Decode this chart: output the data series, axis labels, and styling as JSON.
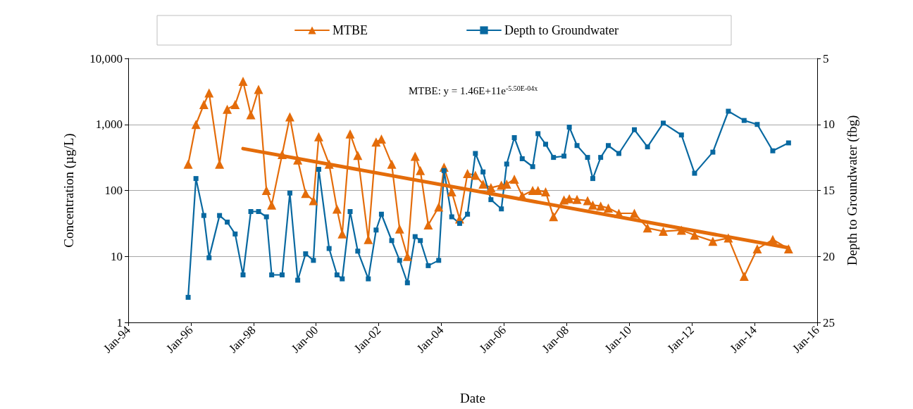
{
  "chart_data": {
    "type": "line",
    "xlabel": "Date",
    "ylabel": "Concentration (µg/L)",
    "y2label": "Depth to Groundwater (fbg)",
    "annotations": [
      "MTBE: y = 1.46E+11e$^{-5.50E-04x}$"
    ],
    "x": [
      "1995-12",
      "1996-03",
      "1996-06",
      "1996-08",
      "1996-12",
      "1997-03",
      "1997-06",
      "1997-09",
      "1997-12",
      "1998-03",
      "1998-06",
      "1998-08",
      "1998-12",
      "1999-03",
      "1999-06",
      "1999-09",
      "1999-12",
      "2000-02",
      "2000-06",
      "2000-09",
      "2000-11",
      "2001-02",
      "2001-05",
      "2001-09",
      "2001-12",
      "2002-02",
      "2002-06",
      "2002-09",
      "2002-12",
      "2003-03",
      "2003-05",
      "2003-08",
      "2003-12",
      "2004-02",
      "2004-05",
      "2004-08",
      "2004-11",
      "2005-02",
      "2005-05",
      "2005-08",
      "2005-12",
      "2006-02",
      "2006-05",
      "2006-08",
      "2006-12",
      "2007-02",
      "2007-05",
      "2007-08",
      "2007-12",
      "2008-02",
      "2008-05",
      "2008-09",
      "2008-11",
      "2009-02",
      "2009-05",
      "2009-09",
      "2010-03",
      "2010-08",
      "2011-02",
      "2011-09",
      "2012-02",
      "2012-09",
      "2013-03",
      "2013-09",
      "2014-02",
      "2014-08",
      "2015-02"
    ],
    "series": [
      {
        "name": "MTBE",
        "color": "#e46c0a",
        "marker": "triangle",
        "values": [
          250,
          1000,
          2000,
          3000,
          250,
          1700,
          2000,
          4500,
          1400,
          3400,
          100,
          60,
          350,
          1300,
          290,
          90,
          70,
          650,
          250,
          52,
          22,
          720,
          340,
          18,
          540,
          600,
          250,
          26,
          10,
          330,
          200,
          30,
          56,
          225,
          95,
          37,
          180,
          170,
          125,
          110,
          120,
          125,
          148,
          83,
          100,
          100,
          95,
          40,
          72,
          75,
          73,
          70,
          60,
          58,
          54,
          45,
          45,
          27,
          24,
          25,
          21,
          17,
          19,
          5,
          13,
          18,
          13
        ]
      },
      {
        "name": "Depth to Groundwater",
        "color": "#0868a0",
        "marker": "square",
        "axis": "y2",
        "values": [
          23.1,
          14.1,
          16.9,
          20.1,
          16.9,
          17.4,
          18.3,
          21.4,
          16.6,
          16.6,
          17.0,
          21.4,
          21.4,
          15.2,
          21.8,
          19.8,
          20.3,
          13.4,
          19.4,
          21.4,
          21.7,
          16.6,
          19.6,
          21.7,
          18.0,
          16.8,
          18.8,
          20.3,
          22.0,
          18.5,
          18.8,
          20.7,
          20.3,
          13.5,
          17.0,
          17.5,
          16.8,
          12.2,
          13.6,
          15.7,
          16.4,
          13.0,
          11.0,
          12.6,
          13.2,
          10.7,
          11.5,
          12.5,
          12.4,
          10.2,
          11.6,
          12.5,
          14.1,
          12.5,
          11.6,
          12.2,
          10.4,
          11.7,
          9.9,
          10.8,
          13.7,
          12.1,
          9.0,
          9.7,
          10.0,
          12.0,
          11.4
        ]
      },
      {
        "type": "line",
        "color": "#e46c0a",
        "marker": "none",
        "x": [
          "1997-09",
          "2015-02"
        ],
        "values": [
          430,
          13.5
        ]
      }
    ],
    "log": "y",
    "grid": "y",
    "legend": "top",
    "xlim": [
      "1994-01",
      "2016-01"
    ],
    "xticks": [
      {
        "value": "1994-01",
        "label": "Jan-94"
      },
      {
        "value": "1996-01",
        "label": "Jan-96"
      },
      {
        "value": "1998-01",
        "label": "Jan-98"
      },
      {
        "value": "2000-01",
        "label": "Jan-00"
      },
      {
        "value": "2002-01",
        "label": "Jan-02"
      },
      {
        "value": "2004-01",
        "label": "Jan-04"
      },
      {
        "value": "2006-01",
        "label": "Jan-06"
      },
      {
        "value": "2008-01",
        "label": "Jan-08"
      },
      {
        "value": "2010-01",
        "label": "Jan-10"
      },
      {
        "value": "2012-01",
        "label": "Jan-12"
      },
      {
        "value": "2014-01",
        "label": "Jan-14"
      },
      {
        "value": "2016-01",
        "label": "Jan-16"
      }
    ],
    "ylim": [
      1,
      10000
    ],
    "yticks": [
      1,
      10,
      100,
      {
        "value": 1000,
        "label": "1,000"
      },
      {
        "value": 10000,
        "label": "10,000"
      }
    ],
    "y2lim": [
      25,
      5
    ],
    "y2ticks": [
      5,
      10,
      15,
      20,
      25
    ]
  }
}
